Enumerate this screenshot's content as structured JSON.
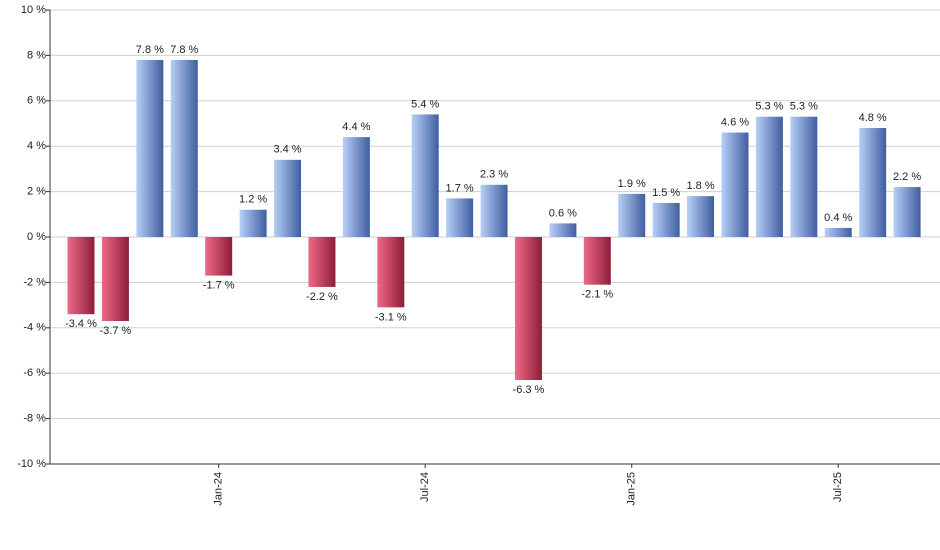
{
  "chart_data": {
    "type": "bar",
    "categories": [
      null,
      null,
      null,
      null,
      "Jan-24",
      null,
      null,
      null,
      null,
      null,
      "Jul-24",
      null,
      null,
      null,
      null,
      null,
      "Jan-25",
      null,
      null,
      null,
      null,
      null,
      "Jul-25",
      null,
      null
    ],
    "values": [
      -3.4,
      -3.7,
      7.8,
      7.8,
      -1.7,
      1.2,
      3.4,
      -2.2,
      4.4,
      -3.1,
      5.4,
      1.7,
      2.3,
      -6.3,
      0.6,
      -2.1,
      1.9,
      1.5,
      1.8,
      4.6,
      5.3,
      5.3,
      0.4,
      4.8,
      2.2
    ],
    "value_labels": [
      "-3.4 %",
      "-3.7 %",
      "7.8 %",
      "7.8 %",
      "-1.7 %",
      "1.2 %",
      "3.4 %",
      "-2.2 %",
      "4.4 %",
      "-3.1 %",
      "5.4 %",
      "1.7 %",
      "2.3 %",
      "-6.3 %",
      "0.6 %",
      "-2.1 %",
      "1.9 %",
      "1.5 %",
      "1.8 %",
      "4.6 %",
      "5.3 %",
      "5.3 %",
      "0.4 %",
      "4.8 %",
      "2.2 %"
    ],
    "ylim": [
      -10,
      10
    ],
    "yticks": [
      {
        "value": -10,
        "label": "-10 %"
      },
      {
        "value": -8,
        "label": "-8 %"
      },
      {
        "value": -6,
        "label": "-6 %"
      },
      {
        "value": -4,
        "label": "-4 %"
      },
      {
        "value": -2,
        "label": "-2 %"
      },
      {
        "value": 0,
        "label": "0 %"
      },
      {
        "value": 2,
        "label": "2 %"
      },
      {
        "value": 4,
        "label": "4 %"
      },
      {
        "value": 6,
        "label": "6 %"
      },
      {
        "value": 8,
        "label": "8 %"
      },
      {
        "value": 10,
        "label": "10 %"
      }
    ],
    "grid": true,
    "colors": {
      "positive": [
        "#b8cff7",
        "#3f5e9f"
      ],
      "negative": [
        "#ee6a88",
        "#8e1d3a"
      ]
    }
  }
}
